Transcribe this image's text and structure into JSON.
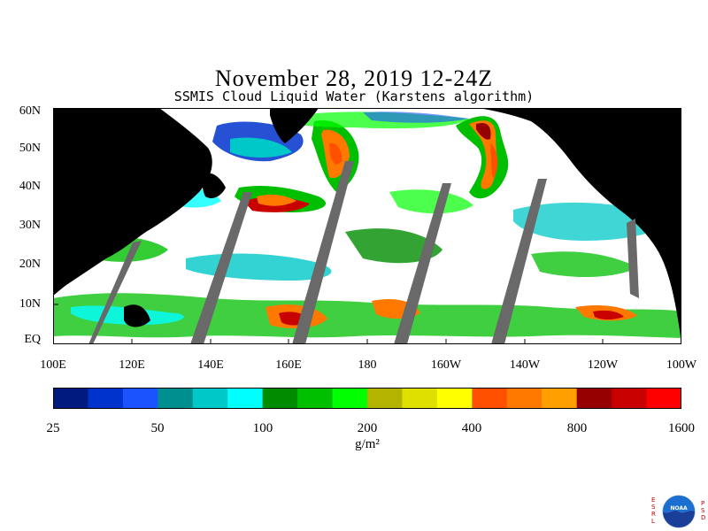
{
  "title": "November 28, 2019 12-24Z",
  "subtitle": "SSMIS Cloud Liquid Water (Karstens algorithm)",
  "lat_labels": [
    "60N",
    "50N",
    "40N",
    "30N",
    "20N",
    "10N",
    "EQ"
  ],
  "lon_labels": [
    "100E",
    "120E",
    "140E",
    "160E",
    "180",
    "160W",
    "140W",
    "120W",
    "100W"
  ],
  "colorbar": {
    "colors": [
      "#001a80",
      "#0033cc",
      "#1a53ff",
      "#008f8f",
      "#00c8c8",
      "#00ffff",
      "#008c00",
      "#00bf00",
      "#00ff00",
      "#b4b400",
      "#e0e000",
      "#ffff00",
      "#ff5000",
      "#ff7800",
      "#ffa000",
      "#960000",
      "#c80000",
      "#ff0000"
    ],
    "tick_labels": [
      "25",
      "50",
      "100",
      "200",
      "400",
      "800",
      "1600"
    ],
    "units": "g/m²"
  },
  "map_colors": {
    "land": "#000000",
    "no_data": "#696969",
    "clear": "#ffffff"
  },
  "logo": {
    "left_text": "ESRL",
    "right_text": "PSD",
    "emblem": "NOAA"
  }
}
